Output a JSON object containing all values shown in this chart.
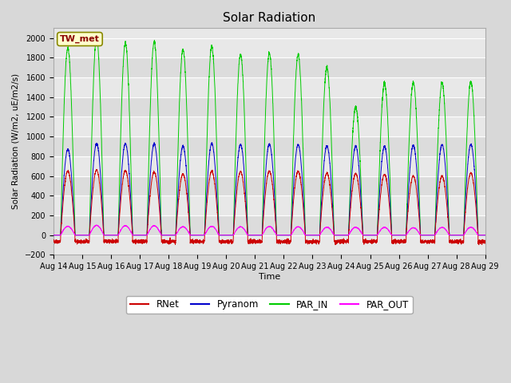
{
  "title": "Solar Radiation",
  "ylabel": "Solar Radiation (W/m2, uE/m2/s)",
  "xlabel": "Time",
  "ylim": [
    -200,
    2100
  ],
  "yticks": [
    -200,
    0,
    200,
    400,
    600,
    800,
    1000,
    1200,
    1400,
    1600,
    1800,
    2000
  ],
  "station_label": "TW_met",
  "x_tick_labels": [
    "Aug 14",
    "Aug 15",
    "Aug 16",
    "Aug 17",
    "Aug 18",
    "Aug 19",
    "Aug 20",
    "Aug 21",
    "Aug 22",
    "Aug 23",
    "Aug 24",
    "Aug 25",
    "Aug 26",
    "Aug 27",
    "Aug 28",
    "Aug 29"
  ],
  "colors": {
    "RNet": "#cc0000",
    "Pyranom": "#0000cc",
    "PAR_IN": "#00cc00",
    "PAR_OUT": "#ff00ff"
  },
  "fig_bg_color": "#d8d8d8",
  "plot_bg_color": "#e8e8e8",
  "legend_labels": [
    "RNet",
    "Pyranom",
    "PAR_IN",
    "PAR_OUT"
  ],
  "n_days": 15,
  "points_per_day": 288,
  "day_peaks_par": [
    1900,
    2000,
    1950,
    1960,
    1880,
    1910,
    1830,
    1850,
    1830,
    1700,
    1300,
    1540,
    1550,
    1545,
    1555
  ],
  "day_peaks_pyr": [
    870,
    930,
    930,
    925,
    900,
    930,
    920,
    925,
    920,
    905,
    905,
    900,
    910,
    920,
    920
  ],
  "day_peaks_rnet": [
    650,
    660,
    655,
    640,
    620,
    650,
    645,
    650,
    645,
    630,
    625,
    615,
    600,
    600,
    630
  ],
  "day_peaks_parout": [
    90,
    100,
    95,
    95,
    85,
    90,
    85,
    88,
    85,
    80,
    80,
    78,
    75,
    78,
    80
  ],
  "grid_colors": [
    "#ffffff",
    "#d0d0d0"
  ]
}
